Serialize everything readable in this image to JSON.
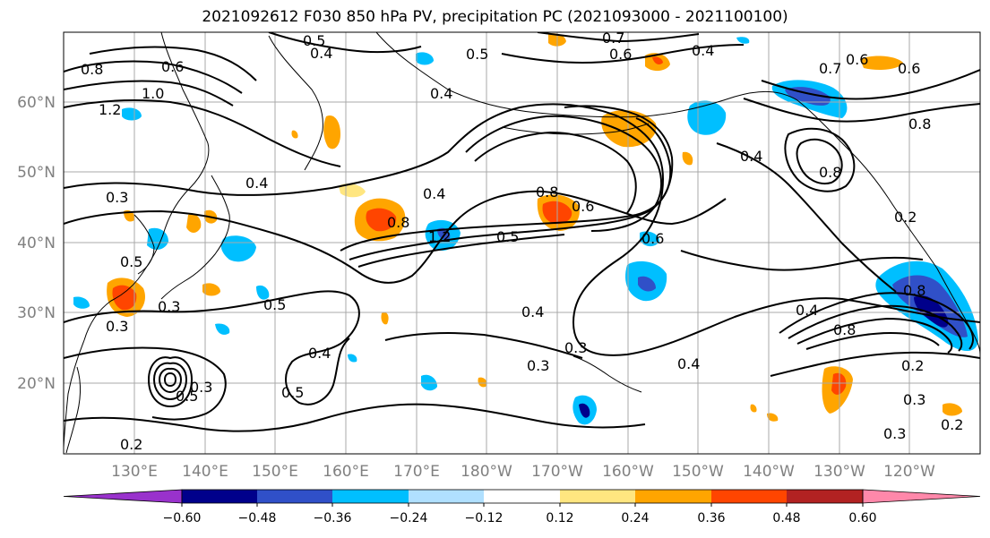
{
  "title": "2021092612 F030 850 hPa PV, precipitation PC (2021093000 - 2021100100)",
  "map": {
    "lat_labels": [
      "60°N",
      "50°N",
      "40°N",
      "30°N",
      "20°N"
    ],
    "lon_labels": [
      "130°E",
      "140°E",
      "150°E",
      "160°E",
      "170°E",
      "180°W",
      "170°W",
      "160°W",
      "150°W",
      "140°W",
      "130°W",
      "120°W"
    ],
    "contour_labels": [
      {
        "text": "0.5"
      },
      {
        "text": "0.4"
      },
      {
        "text": "0.8"
      },
      {
        "text": "0.6"
      },
      {
        "text": "1.0"
      },
      {
        "text": "1.2"
      },
      {
        "text": "0.3"
      },
      {
        "text": "0.4"
      },
      {
        "text": "0.5"
      },
      {
        "text": "0.5"
      },
      {
        "text": "0.3"
      },
      {
        "text": "0.3"
      },
      {
        "text": "0.5"
      },
      {
        "text": "0.4"
      },
      {
        "text": "0.5"
      },
      {
        "text": "0.2"
      },
      {
        "text": "0.4"
      },
      {
        "text": "0.8"
      },
      {
        "text": "1.2"
      },
      {
        "text": "0.5"
      },
      {
        "text": "0.8"
      },
      {
        "text": "0.6"
      },
      {
        "text": "0.6"
      },
      {
        "text": "0.4"
      },
      {
        "text": "0.3"
      },
      {
        "text": "0.5"
      },
      {
        "text": "0.6"
      },
      {
        "text": "0.7"
      },
      {
        "text": "0.4"
      },
      {
        "text": "0.4"
      },
      {
        "text": "0.6"
      },
      {
        "text": "0.4"
      },
      {
        "text": "0.8"
      },
      {
        "text": "0.8"
      },
      {
        "text": "0.2"
      },
      {
        "text": "0.4"
      },
      {
        "text": "0.8"
      },
      {
        "text": "0.2"
      },
      {
        "text": "0.3"
      },
      {
        "text": "0.3"
      },
      {
        "text": "0.2"
      },
      {
        "text": "0.6"
      },
      {
        "text": "0.7"
      },
      {
        "text": "0.4"
      },
      {
        "text": "0.8"
      },
      {
        "text": "0.3"
      },
      {
        "text": "0.3"
      }
    ]
  },
  "colorbar": {
    "colors": [
      "#9932cc",
      "#00008b",
      "#3050c8",
      "#00bfff",
      "#b0e0ff",
      "#ffffff",
      "#ffe680",
      "#ffa500",
      "#ff4500",
      "#b22222",
      "#ff88aa"
    ],
    "ticks": [
      "−0.60",
      "−0.48",
      "−0.36",
      "−0.24",
      "−0.12",
      "0.12",
      "0.24",
      "0.36",
      "0.48",
      "0.60"
    ]
  }
}
